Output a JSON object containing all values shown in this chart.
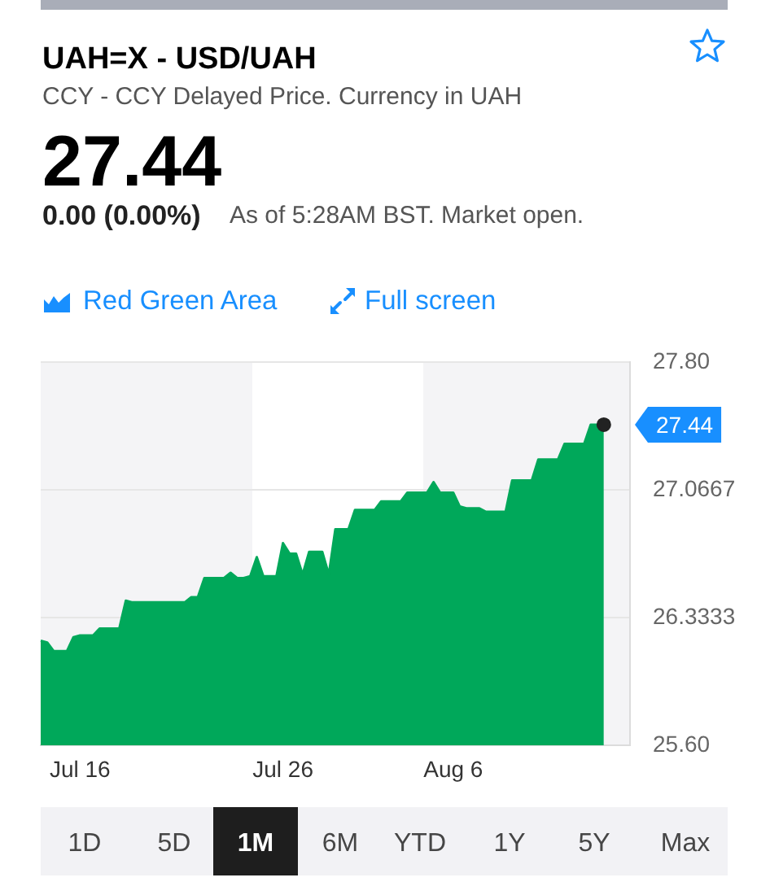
{
  "chart_data": {
    "type": "area",
    "title": "UAH=X - USD/UAH",
    "subtitle": "CCY - CCY Delayed Price. Currency in UAH",
    "categories": [
      null,
      null,
      null,
      null,
      null,
      null,
      "Jul 16",
      null,
      null,
      null,
      null,
      null,
      null,
      null,
      null,
      null,
      null,
      null,
      null,
      null,
      null,
      null,
      null,
      null,
      null,
      null,
      null,
      null,
      null,
      null,
      null,
      null,
      null,
      null,
      null,
      null,
      null,
      "Jul 26",
      null,
      null,
      null,
      null,
      null,
      null,
      null,
      null,
      null,
      null,
      null,
      null,
      null,
      null,
      null,
      null,
      null,
      null,
      null,
      null,
      null,
      null,
      null,
      null,
      null,
      "Aug 6",
      null,
      null,
      null,
      null,
      null,
      null,
      null,
      null,
      null,
      null,
      null,
      null,
      null,
      null,
      null,
      null,
      null,
      null,
      null,
      null,
      null,
      null,
      null,
      null,
      null,
      null,
      null
    ],
    "series": [
      {
        "color": "#00a85a",
        "values": [
          26.2,
          26.19,
          26.14,
          26.14,
          26.14,
          26.22,
          26.23,
          26.23,
          26.23,
          26.27,
          26.27,
          26.27,
          26.27,
          26.43,
          26.42,
          26.42,
          26.42,
          26.42,
          26.42,
          26.42,
          26.42,
          26.42,
          26.42,
          26.45,
          26.45,
          26.56,
          26.56,
          26.56,
          26.56,
          26.59,
          26.56,
          26.56,
          26.57,
          26.68,
          26.57,
          26.57,
          26.57,
          26.76,
          26.7,
          26.7,
          26.58,
          26.71,
          26.71,
          26.71,
          26.58,
          26.84,
          26.84,
          26.84,
          26.95,
          26.95,
          26.95,
          26.95,
          27.0,
          27.0,
          27.0,
          27.0,
          27.05,
          27.05,
          27.05,
          27.05,
          27.11,
          27.05,
          27.05,
          27.05,
          26.97,
          26.96,
          26.96,
          26.96,
          26.94,
          26.94,
          26.94,
          26.94,
          27.12,
          27.12,
          27.12,
          27.12,
          27.24,
          27.24,
          27.24,
          27.24,
          27.33,
          27.33,
          27.33,
          27.33,
          27.44,
          27.44,
          27.44,
          null,
          null,
          null,
          null
        ]
      },
      {
        "type": "scatter",
        "color": "#222222",
        "marker": "circle",
        "values": [
          null,
          null,
          null,
          null,
          null,
          null,
          null,
          null,
          null,
          null,
          null,
          null,
          null,
          null,
          null,
          null,
          null,
          null,
          null,
          null,
          null,
          null,
          null,
          null,
          null,
          null,
          null,
          null,
          null,
          null,
          null,
          null,
          null,
          null,
          null,
          null,
          null,
          null,
          null,
          null,
          null,
          null,
          null,
          null,
          null,
          null,
          null,
          null,
          null,
          null,
          null,
          null,
          null,
          null,
          null,
          null,
          null,
          null,
          null,
          null,
          null,
          null,
          null,
          null,
          null,
          null,
          null,
          null,
          null,
          null,
          null,
          null,
          null,
          null,
          null,
          null,
          null,
          null,
          null,
          null,
          null,
          null,
          null,
          null,
          null,
          null,
          27.44,
          null,
          null,
          null,
          null
        ]
      }
    ],
    "ylim": [
      25.6,
      27.8
    ],
    "yticks": [
      {
        "value": 25.6,
        "label": "25.60"
      },
      26.3333,
      27.0667,
      {
        "value": 27.8,
        "label": "27.80"
      }
    ],
    "grid": "y",
    "annotations": [
      "27.44",
      "0.00 (0.00%)",
      "As of 5:28AM BST. Market open.",
      "Red Green Area",
      "Full screen",
      "1D",
      "5D",
      "1M",
      "6M",
      "YTD",
      "1Y",
      "5Y",
      "Max",
      "27.44"
    ]
  }
}
